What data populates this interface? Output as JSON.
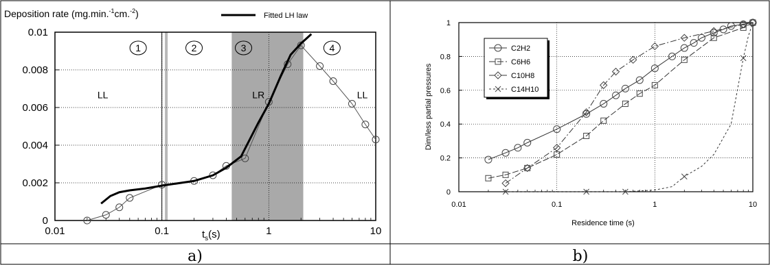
{
  "figure": {
    "caption_a": "a)",
    "caption_b": "b)"
  },
  "chart_data": [
    {
      "type": "line",
      "panel": "a",
      "ylabel": "Deposition rate (mg.min.-1cm.-2)",
      "xlabel": "t_s(s)",
      "x_scale": "log",
      "xlim": [
        0.01,
        10
      ],
      "ylim": [
        0,
        0.01
      ],
      "x_ticks": [
        "0.01",
        "0.1",
        "1",
        "10"
      ],
      "y_ticks": [
        "0",
        "0.002",
        "0.004",
        "0.006",
        "0.008",
        "0.01"
      ],
      "grid": "dotted",
      "legend": "top-right",
      "series": [
        {
          "name": "",
          "marker": "circle",
          "x": [
            0.02,
            0.03,
            0.04,
            0.05,
            0.1,
            0.2,
            0.3,
            0.4,
            0.6,
            1.0,
            1.5,
            2.0,
            3.0,
            4.0,
            6.0,
            8.0,
            10.0
          ],
          "y": [
            0.0,
            0.0003,
            0.0007,
            0.0012,
            0.0019,
            0.0021,
            0.0024,
            0.0029,
            0.0033,
            0.0063,
            0.0083,
            0.0093,
            0.0082,
            0.0074,
            0.0062,
            0.0051,
            0.0043
          ]
        },
        {
          "name": "Fitted LH law",
          "x": [
            0.027,
            0.033,
            0.04,
            0.05,
            0.07,
            0.1,
            0.2,
            0.3,
            0.4,
            0.55,
            0.8,
            1.0,
            1.3,
            1.6,
            2.0,
            2.5
          ],
          "y": [
            0.0009,
            0.0013,
            0.0015,
            0.0016,
            0.0017,
            0.00185,
            0.0021,
            0.0024,
            0.0028,
            0.0034,
            0.0052,
            0.0062,
            0.0077,
            0.0088,
            0.0094,
            0.0099
          ]
        }
      ],
      "regions": [
        {
          "label": "1",
          "x": 0.06
        },
        {
          "label": "2",
          "x": 0.2
        },
        {
          "label": "3",
          "x": 0.58
        },
        {
          "label": "4",
          "x": 3.9
        }
      ],
      "annotations": [
        {
          "text": "LL",
          "x": 0.028,
          "y": 0.0065
        },
        {
          "text": "LR",
          "x": 0.8,
          "y": 0.0065
        },
        {
          "text": "LL",
          "x": 7.5,
          "y": 0.0065
        }
      ],
      "shaded_band": [
        0.45,
        2.1
      ],
      "vertical_line": 0.1,
      "gray_bar": 0.11
    },
    {
      "type": "line",
      "panel": "b",
      "ylabel": "Dim/less partial pressures",
      "xlabel": "Residence time (s)",
      "x_scale": "log",
      "xlim": [
        0.01,
        10
      ],
      "ylim": [
        0,
        1
      ],
      "x_ticks": [
        "0.01",
        "0.1",
        "1",
        "10"
      ],
      "y_ticks": [
        "0",
        "0.2",
        "0.4",
        "0.6",
        "0.8",
        "1"
      ],
      "grid": "dotted",
      "legend": "top-left",
      "series": [
        {
          "name": "C2H2",
          "marker": "circle",
          "x": [
            0.02,
            0.03,
            0.04,
            0.05,
            0.1,
            0.2,
            0.3,
            0.4,
            0.5,
            0.7,
            1.0,
            1.5,
            2.0,
            2.5,
            3.0,
            4.0,
            5.0,
            6.0,
            8.0,
            10.0
          ],
          "y": [
            0.19,
            0.23,
            0.26,
            0.29,
            0.37,
            0.46,
            0.52,
            0.57,
            0.61,
            0.66,
            0.73,
            0.8,
            0.85,
            0.88,
            0.91,
            0.94,
            0.96,
            0.98,
            0.99,
            1.0
          ]
        },
        {
          "name": "C6H6",
          "marker": "square",
          "x": [
            0.02,
            0.03,
            0.05,
            0.1,
            0.2,
            0.3,
            0.5,
            0.7,
            1.0,
            2.0,
            4.0,
            8.0,
            10.0
          ],
          "y": [
            0.08,
            0.1,
            0.14,
            0.22,
            0.33,
            0.42,
            0.52,
            0.58,
            0.63,
            0.78,
            0.91,
            0.97,
            1.0
          ]
        },
        {
          "name": "C10H8",
          "marker": "diamond",
          "x": [
            0.03,
            0.05,
            0.1,
            0.2,
            0.3,
            0.4,
            0.6,
            1.0,
            2.0,
            4.0,
            8.0,
            10.0
          ],
          "y": [
            0.05,
            0.14,
            0.26,
            0.47,
            0.63,
            0.71,
            0.78,
            0.86,
            0.91,
            0.95,
            0.99,
            1.0
          ]
        },
        {
          "name": "C14H10",
          "marker": "x",
          "x": [
            0.03,
            0.2,
            0.5,
            0.7,
            1.0,
            1.5,
            2.0,
            3.0,
            4.0,
            6.0,
            8.0,
            9.0,
            10.0
          ],
          "y": [
            0.0,
            0.0,
            0.0,
            0.005,
            0.01,
            0.03,
            0.09,
            0.15,
            0.22,
            0.4,
            0.79,
            0.92,
            1.0
          ]
        }
      ]
    }
  ]
}
